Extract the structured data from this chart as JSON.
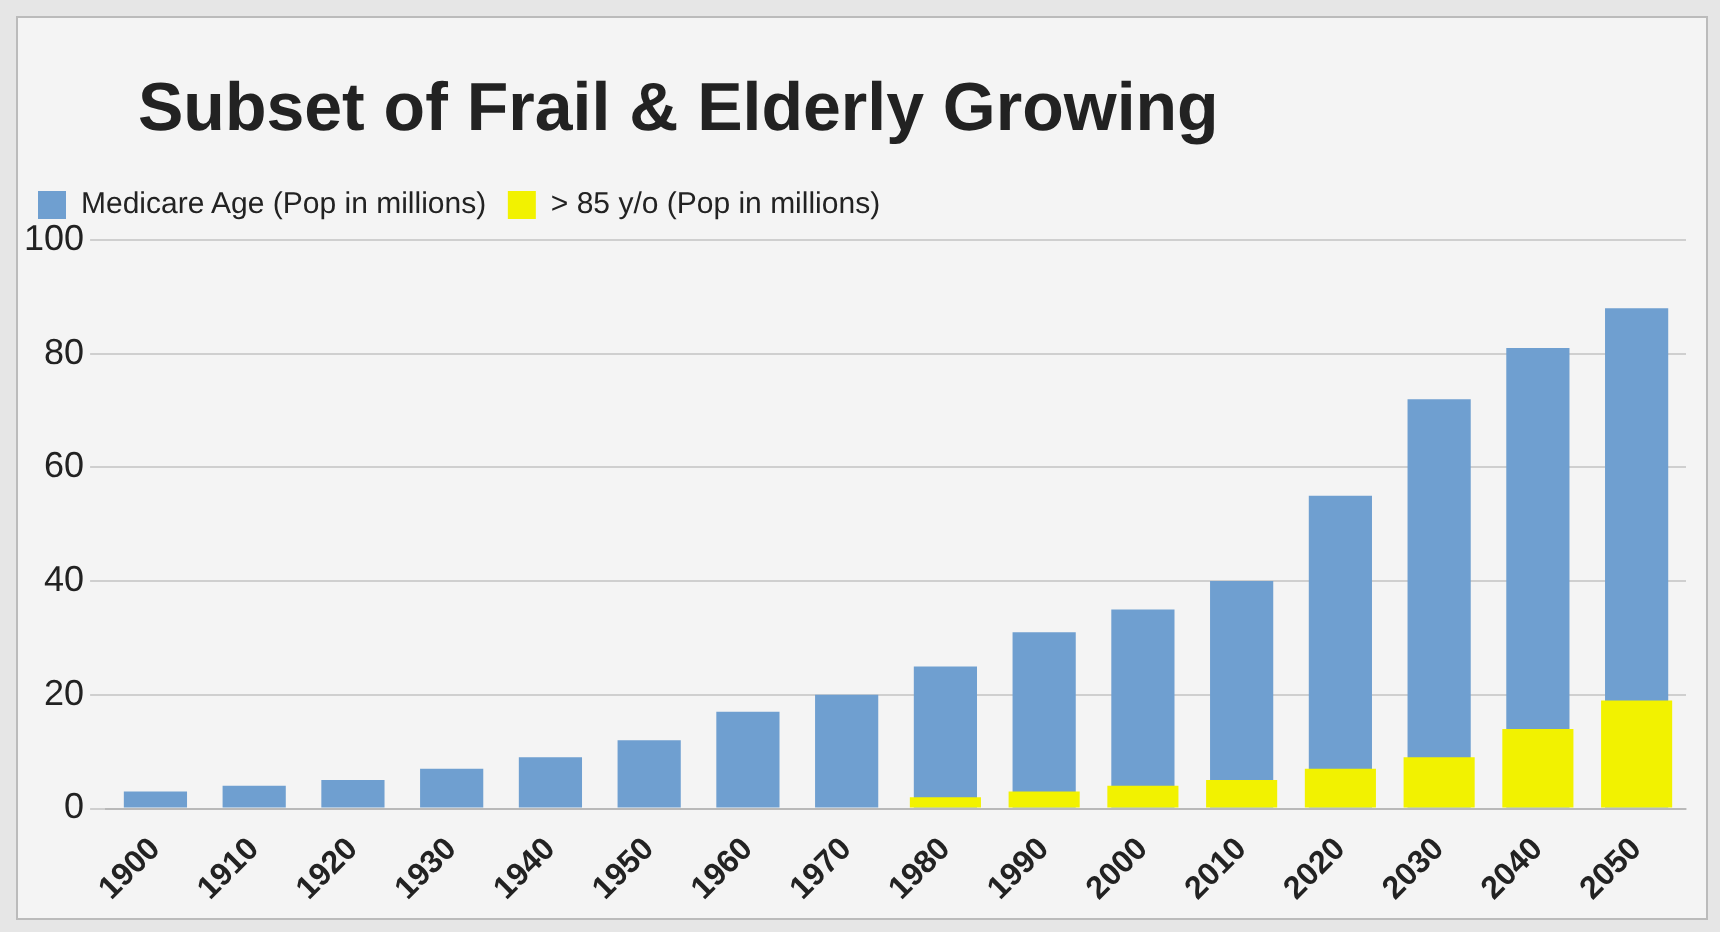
{
  "chart_data": {
    "type": "bar",
    "title": "Subset of Frail & Elderly Growing",
    "categories": [
      "1900",
      "1910",
      "1920",
      "1930",
      "1940",
      "1950",
      "1960",
      "1970",
      "1980",
      "1990",
      "2000",
      "2010",
      "2020",
      "2030",
      "2040",
      "2050"
    ],
    "series": [
      {
        "name": "Medicare Age (Pop in millions)",
        "color": "#6f9fd0",
        "values": [
          3,
          4,
          5,
          7,
          9,
          12,
          17,
          20,
          25,
          31,
          35,
          40,
          55,
          72,
          81,
          88
        ]
      },
      {
        "name": "> 85 y/o (Pop in millions)",
        "color": "#f2f200",
        "values": [
          null,
          null,
          null,
          null,
          null,
          null,
          null,
          null,
          2,
          3,
          4,
          5,
          7,
          9,
          14,
          19
        ]
      }
    ],
    "ylim": [
      0,
      100
    ],
    "yticks": [
      0,
      20,
      40,
      60,
      80,
      100
    ],
    "grid": "y",
    "legend": "top left"
  }
}
